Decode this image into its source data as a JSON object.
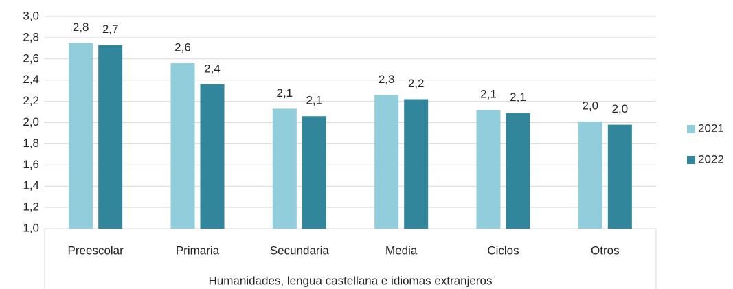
{
  "chart_data": {
    "type": "bar",
    "categories": [
      "Preescolar",
      "Primaria",
      "Secundaria",
      "Media",
      "Ciclos",
      "Otros"
    ],
    "xlabel": "Humanidades, lengua castellana e idiomas extranjeros",
    "series": [
      {
        "name": "2021",
        "color": "#92cddc",
        "values": [
          2.75,
          2.56,
          2.13,
          2.26,
          2.12,
          2.01
        ],
        "value_labels": [
          "2,8",
          "2,6",
          "2,1",
          "2,3",
          "2,1",
          "2,0"
        ]
      },
      {
        "name": "2022",
        "color": "#31869b",
        "values": [
          2.73,
          2.36,
          2.06,
          2.22,
          2.09,
          1.98
        ],
        "value_labels": [
          "2,7",
          "2,4",
          "2,1",
          "2,2",
          "2,1",
          "2,0"
        ]
      }
    ],
    "ylim": [
      1.0,
      3.0
    ],
    "yticks": [
      {
        "value": 1.0,
        "label": "1,0"
      },
      {
        "value": 1.2,
        "label": "1,2"
      },
      {
        "value": 1.4,
        "label": "1,4"
      },
      {
        "value": 1.6,
        "label": "1,6"
      },
      {
        "value": 1.8,
        "label": "1,8"
      },
      {
        "value": 2.0,
        "label": "2,0"
      },
      {
        "value": 2.2,
        "label": "2,2"
      },
      {
        "value": 2.4,
        "label": "2,4"
      },
      {
        "value": 2.6,
        "label": "2,6"
      },
      {
        "value": 2.8,
        "label": "2,8"
      },
      {
        "value": 3.0,
        "label": "3,0"
      }
    ],
    "grid": true,
    "legend": "right"
  }
}
